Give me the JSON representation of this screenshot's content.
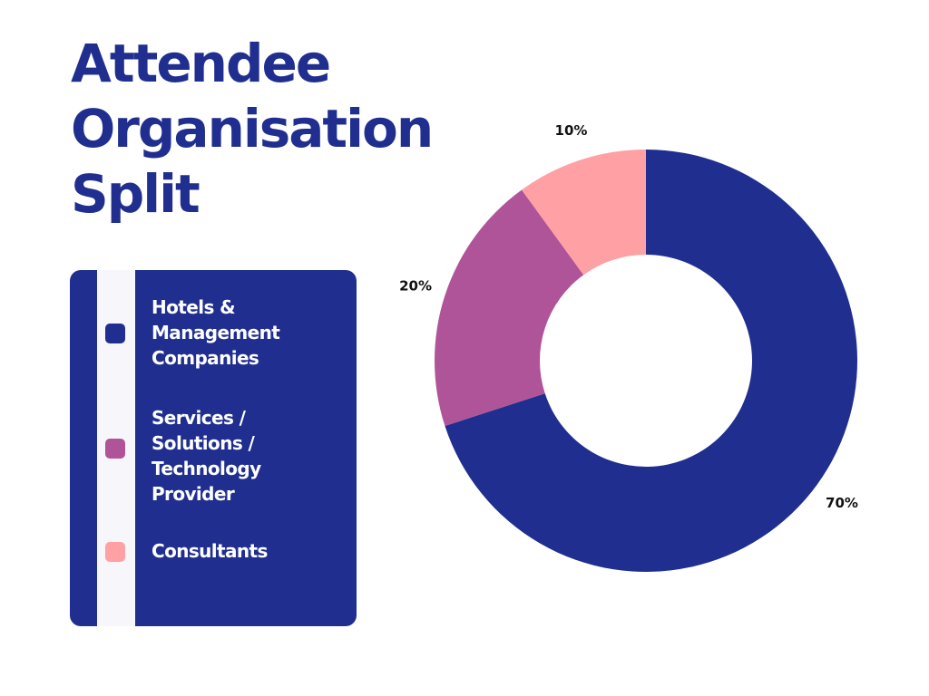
{
  "title_lines": [
    "Attendee",
    "Organisation",
    "Split"
  ],
  "legend": [
    {
      "label": "Hotels &\nManagement\nCompanies",
      "color": "#202f8f"
    },
    {
      "label": "Services /\nSolutions /\nTechnology\nProvider",
      "color": "#b05499"
    },
    {
      "label": "Consultants",
      "color": "#ffa0a4"
    }
  ],
  "chart_data": {
    "type": "pie",
    "donut": true,
    "title": "Attendee Organisation Split",
    "legend_position": "left",
    "slices": [
      {
        "label": "Hotels & Management Companies",
        "value": 70,
        "value_label": "70%",
        "color": "#202f8f"
      },
      {
        "label": "Services / Solutions / Technology Provider",
        "value": 20,
        "value_label": "20%",
        "color": "#b05499"
      },
      {
        "label": "Consultants",
        "value": 10,
        "value_label": "10%",
        "color": "#ffa0a4"
      }
    ]
  }
}
